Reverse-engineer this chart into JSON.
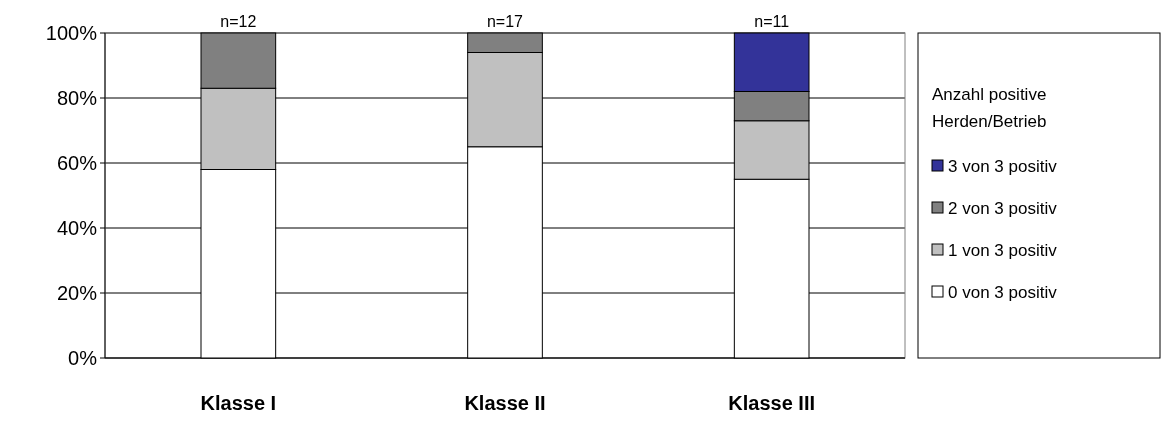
{
  "chart_data": {
    "type": "bar",
    "stacked": true,
    "categories": [
      "Klasse I",
      "Klasse II",
      "Klasse III"
    ],
    "series": [
      {
        "name": "0 von 3 positiv",
        "color": "#ffffff",
        "values": [
          58,
          65,
          55
        ]
      },
      {
        "name": "1 von 3 positiv",
        "color": "#c0c0c0",
        "values": [
          25,
          29,
          18
        ]
      },
      {
        "name": "2 von 3 positiv",
        "color": "#808080",
        "values": [
          17,
          6,
          9
        ]
      },
      {
        "name": "3 von 3 positiv",
        "color": "#333399",
        "values": [
          0,
          0,
          18
        ]
      }
    ],
    "ylim": [
      0,
      100
    ],
    "yticks": [
      {
        "value": 0,
        "label": "0%"
      },
      {
        "value": 20,
        "label": "20%"
      },
      {
        "value": 40,
        "label": "40%"
      },
      {
        "value": 60,
        "label": "60%"
      },
      {
        "value": 80,
        "label": "80%"
      },
      {
        "value": 100,
        "label": "100%"
      }
    ],
    "grid": "y",
    "legend": "right",
    "legend_title": "Anzahl positive Herden/Betrieb",
    "annotations": [
      {
        "text": "n=12",
        "x": "Klasse I",
        "y": 100
      },
      {
        "text": "n=17",
        "x": "Klasse II",
        "y": 100
      },
      {
        "text": "n=11",
        "x": "Klasse III",
        "y": 100
      }
    ]
  }
}
